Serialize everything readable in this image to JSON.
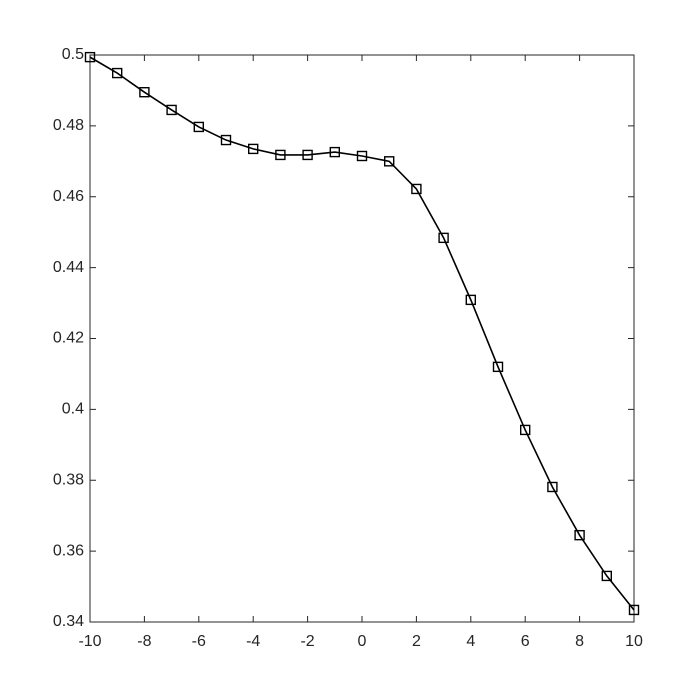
{
  "chart_data": {
    "type": "line",
    "x": [
      -10,
      -9,
      -8,
      -7,
      -6,
      -5,
      -4,
      -3,
      -2,
      -1,
      0,
      1,
      2,
      3,
      4,
      5,
      6,
      7,
      8,
      9,
      10
    ],
    "values": [
      0.4994,
      0.4949,
      0.4895,
      0.4845,
      0.4797,
      0.476,
      0.4735,
      0.4718,
      0.4718,
      0.4726,
      0.4715,
      0.47,
      0.4622,
      0.4484,
      0.4309,
      0.412,
      0.3942,
      0.3781,
      0.3645,
      0.353,
      0.3434
    ],
    "color": "#000000",
    "marker": "square",
    "xlim": [
      -10,
      10
    ],
    "xticks": [
      -10,
      -8,
      -6,
      -4,
      -2,
      0,
      2,
      4,
      6,
      8,
      10
    ],
    "ylim": [
      0.34,
      0.5
    ],
    "yticks": [
      0.34,
      0.36,
      0.38,
      0.4,
      0.42,
      0.44,
      0.46,
      0.48,
      0.5
    ],
    "grid": false
  }
}
